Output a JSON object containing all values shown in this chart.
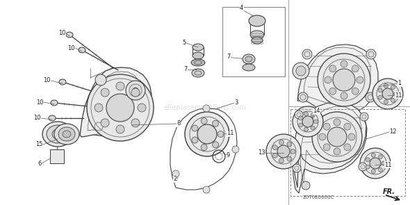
{
  "bg_color": "#ffffff",
  "watermark": "eReplacementParts.com",
  "diagram_code": "Z0T0E0600C",
  "fr_label": "FR.",
  "colors": {
    "text": "#222222",
    "part_line": "#444444",
    "leader": "#555555",
    "separator": "#999999",
    "dash_box": "#aaaaaa",
    "detail_box": "#888888",
    "bg": "#ffffff",
    "housing_fill": "#f2f2f2",
    "housing_edge": "#3a3a3a",
    "watermark": "#cccccc",
    "screw": "#555555"
  },
  "font_sizes": {
    "label": 6,
    "watermark": 7,
    "diagram_code": 5,
    "fr": 7
  }
}
